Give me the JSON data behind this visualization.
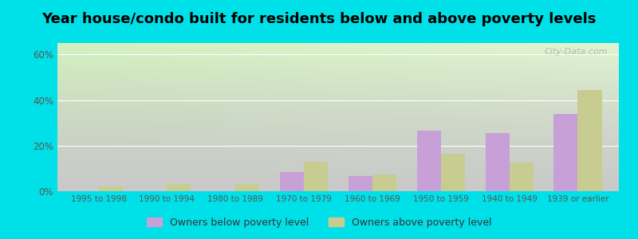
{
  "title": "Year house/condo built for residents below and above poverty levels",
  "categories": [
    "1995 to 1998",
    "1990 to 1994",
    "1980 to 1989",
    "1970 to 1979",
    "1960 to 1969",
    "1950 to 1959",
    "1940 to 1949",
    "1939 or earlier"
  ],
  "below_poverty": [
    0,
    0,
    0,
    8.5,
    6.5,
    26.5,
    25.5,
    34.0
  ],
  "above_poverty": [
    2.0,
    3.0,
    3.0,
    13.0,
    7.5,
    16.5,
    12.5,
    44.5
  ],
  "below_color": "#c8a0d8",
  "above_color": "#c8cc90",
  "ylim": [
    0,
    65
  ],
  "yticks": [
    0,
    20,
    40,
    60
  ],
  "ytick_labels": [
    "0%",
    "20%",
    "40%",
    "60%"
  ],
  "bar_width": 0.35,
  "bg_topleft": "#d8eec8",
  "bg_topright": "#e8f5e0",
  "bg_bottomleft": "#f0f8e8",
  "bg_bottomright": "#ffffff",
  "outer_bg": "#00e0e8",
  "title_fontsize": 13,
  "legend_labels": [
    "Owners below poverty level",
    "Owners above poverty level"
  ],
  "watermark": "City-Data.com"
}
